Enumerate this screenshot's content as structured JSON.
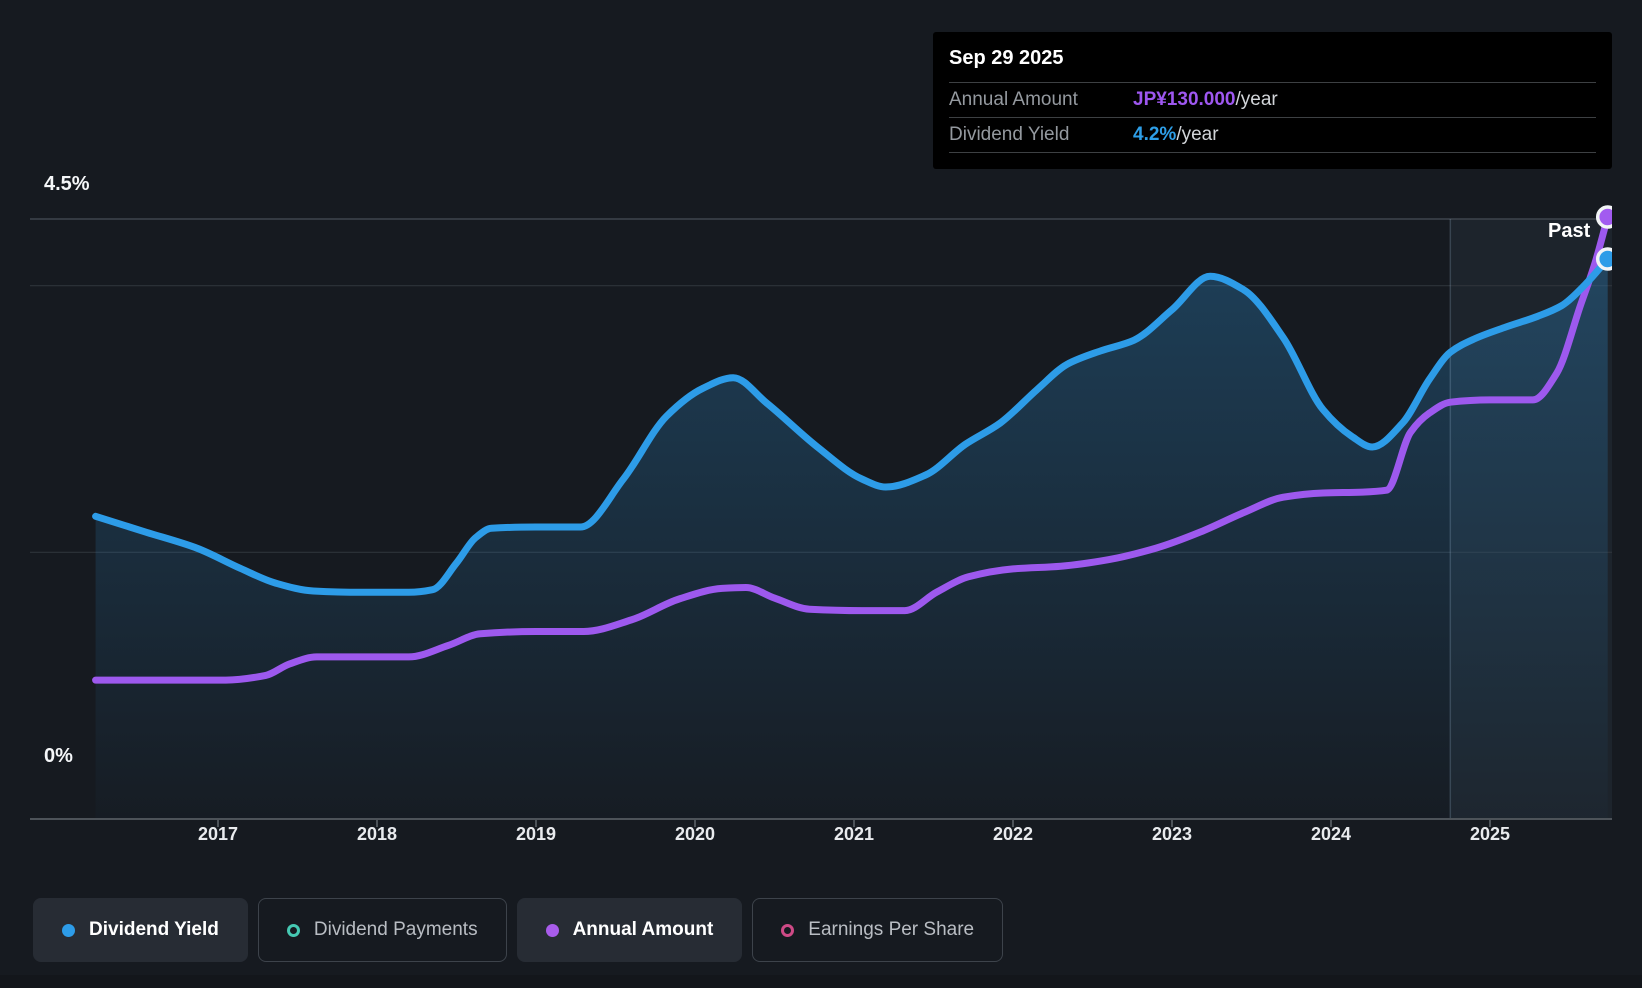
{
  "tooltip": {
    "date": "Sep 29 2025",
    "rows": [
      {
        "label": "Annual Amount",
        "value": "JP¥130.000",
        "suffix": "/year",
        "color": "#9e57f0"
      },
      {
        "label": "Dividend Yield",
        "value": "4.2%",
        "suffix": "/year",
        "color": "#2e9fe8"
      }
    ]
  },
  "axis": {
    "y_top_label": "4.5%",
    "y_bottom_label": "0%"
  },
  "annotations": {
    "past_label": "Past"
  },
  "legend": [
    {
      "label": "Dividend Yield",
      "color": "#2d9ce8",
      "style": "filled",
      "active": true
    },
    {
      "label": "Dividend Payments",
      "color": "#45c8b2",
      "style": "ring",
      "active": false
    },
    {
      "label": "Annual Amount",
      "color": "#a85ceb",
      "style": "filled",
      "active": true
    },
    {
      "label": "Earnings Per Share",
      "color": "#ce4a86",
      "style": "ring",
      "active": false
    }
  ],
  "chart_data": {
    "type": "line",
    "title": "Dividend history",
    "x_axis": {
      "ticks": [
        2017,
        2018,
        2019,
        2020,
        2021,
        2022,
        2023,
        2024,
        2025
      ],
      "range": [
        2016.23,
        2025.74
      ]
    },
    "y_axis_yield": {
      "unit": "%",
      "range": [
        0,
        4.5
      ],
      "gridlines": [
        4.5,
        4.0,
        2.0,
        0
      ],
      "labeled": [
        "4.5%",
        "0%"
      ]
    },
    "y_axis_amount": {
      "unit": "JP¥/year",
      "range": [
        0,
        135
      ]
    },
    "past_divider_x": 2024.75,
    "legend_position": "bottom",
    "grid": true,
    "series": [
      {
        "name": "Dividend Yield",
        "unit": "%",
        "color": "#2d9ce8",
        "area": true,
        "points": [
          [
            2016.23,
            2.27
          ],
          [
            2016.55,
            2.15
          ],
          [
            2016.87,
            2.03
          ],
          [
            2017.14,
            1.88
          ],
          [
            2017.36,
            1.77
          ],
          [
            2017.6,
            1.71
          ],
          [
            2017.9,
            1.7
          ],
          [
            2018.2,
            1.7
          ],
          [
            2018.35,
            1.72
          ],
          [
            2018.5,
            1.92
          ],
          [
            2018.62,
            2.11
          ],
          [
            2018.72,
            2.18
          ],
          [
            2019.0,
            2.19
          ],
          [
            2019.28,
            2.19
          ],
          [
            2019.55,
            2.55
          ],
          [
            2019.82,
            3.02
          ],
          [
            2020.05,
            3.23
          ],
          [
            2020.24,
            3.31
          ],
          [
            2020.45,
            3.12
          ],
          [
            2020.77,
            2.79
          ],
          [
            2021.05,
            2.55
          ],
          [
            2021.2,
            2.49
          ],
          [
            2021.45,
            2.58
          ],
          [
            2021.7,
            2.81
          ],
          [
            2021.92,
            2.97
          ],
          [
            2022.15,
            3.22
          ],
          [
            2022.34,
            3.41
          ],
          [
            2022.55,
            3.51
          ],
          [
            2022.76,
            3.59
          ],
          [
            2023.0,
            3.82
          ],
          [
            2023.24,
            4.07
          ],
          [
            2023.45,
            3.97
          ],
          [
            2023.7,
            3.61
          ],
          [
            2023.95,
            3.07
          ],
          [
            2024.13,
            2.87
          ],
          [
            2024.26,
            2.79
          ],
          [
            2024.45,
            2.97
          ],
          [
            2024.62,
            3.3
          ],
          [
            2024.75,
            3.5
          ],
          [
            2024.9,
            3.6
          ],
          [
            2025.1,
            3.69
          ],
          [
            2025.3,
            3.77
          ],
          [
            2025.45,
            3.85
          ],
          [
            2025.6,
            4.01
          ],
          [
            2025.74,
            4.2
          ]
        ]
      },
      {
        "name": "Annual Amount",
        "unit": "JP¥",
        "color": "#9d59ee",
        "area": false,
        "points": [
          [
            2016.23,
            30.0
          ],
          [
            2017.05,
            30.0
          ],
          [
            2017.3,
            31.0
          ],
          [
            2017.45,
            33.5
          ],
          [
            2017.62,
            35.0
          ],
          [
            2018.2,
            35.0
          ],
          [
            2018.45,
            37.5
          ],
          [
            2018.65,
            40.0
          ],
          [
            2019.0,
            40.5
          ],
          [
            2019.3,
            40.5
          ],
          [
            2019.6,
            43.0
          ],
          [
            2019.9,
            47.5
          ],
          [
            2020.17,
            49.8
          ],
          [
            2020.32,
            50.0
          ],
          [
            2020.5,
            47.7
          ],
          [
            2020.72,
            45.3
          ],
          [
            2021.05,
            45.0
          ],
          [
            2021.32,
            45.0
          ],
          [
            2021.52,
            49.0
          ],
          [
            2021.72,
            52.3
          ],
          [
            2022.0,
            54.0
          ],
          [
            2022.3,
            54.6
          ],
          [
            2022.6,
            56.0
          ],
          [
            2022.9,
            58.5
          ],
          [
            2023.18,
            62.0
          ],
          [
            2023.46,
            66.3
          ],
          [
            2023.7,
            69.5
          ],
          [
            2023.95,
            70.4
          ],
          [
            2024.2,
            70.6
          ],
          [
            2024.35,
            71.0
          ],
          [
            2024.5,
            83.5
          ],
          [
            2024.62,
            87.7
          ],
          [
            2024.75,
            90.0
          ],
          [
            2025.0,
            90.5
          ],
          [
            2025.27,
            90.5
          ],
          [
            2025.42,
            96.3
          ],
          [
            2025.57,
            111.0
          ],
          [
            2025.66,
            120.0
          ],
          [
            2025.74,
            130.0
          ]
        ]
      }
    ],
    "end_markers": [
      {
        "series": "Annual Amount",
        "x": 2025.74,
        "y": 130,
        "color": "#a25bf0"
      },
      {
        "series": "Dividend Yield",
        "x": 2025.74,
        "y": 4.2,
        "color": "#2d9ce8"
      }
    ]
  }
}
